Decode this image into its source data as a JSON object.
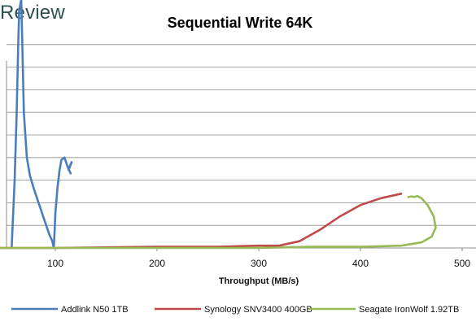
{
  "brand": {
    "text": "Review"
  },
  "chart_data": {
    "type": "line",
    "title": "Sequential Write 64K",
    "xlabel": "Throughput (MB/s)",
    "ylabel": "",
    "xlim": [
      50,
      500
    ],
    "x_ticks": [
      "100",
      "200",
      "300",
      "400",
      "500"
    ],
    "grid": true,
    "legend_position": "bottom",
    "series": [
      {
        "name": "Addlink N50 1TB",
        "color": "#4a7ebb",
        "points": [
          [
            57,
            0
          ],
          [
            60,
            3
          ],
          [
            62,
            6
          ],
          [
            63.5,
            9
          ],
          [
            64.5,
            10.5
          ],
          [
            66.5,
            11
          ],
          [
            67,
            10
          ],
          [
            69,
            6
          ],
          [
            72,
            4
          ],
          [
            75,
            3.2
          ],
          [
            79,
            2.6
          ],
          [
            82,
            2.2
          ],
          [
            85,
            1.8
          ],
          [
            88,
            1.4
          ],
          [
            91,
            1.0
          ],
          [
            94,
            0.6
          ],
          [
            97,
            0.3
          ],
          [
            98.5,
            0
          ],
          [
            99,
            0.5
          ],
          [
            100,
            1.5
          ],
          [
            102,
            2.6
          ],
          [
            104,
            3.4
          ],
          [
            106,
            3.9
          ],
          [
            109,
            4.0
          ],
          [
            112,
            3.6
          ],
          [
            115,
            3.3
          ],
          [
            113,
            3.5
          ],
          [
            115,
            3.7
          ],
          [
            113,
            3.45
          ],
          [
            116,
            3.8
          ],
          [
            114,
            3.55
          ]
        ]
      },
      {
        "name": "Synology SNV3400 400GB",
        "color": "#be4b48",
        "points": [
          [
            45,
            0
          ],
          [
            100,
            0
          ],
          [
            200,
            0.05
          ],
          [
            260,
            0.05
          ],
          [
            300,
            0.1
          ],
          [
            320,
            0.1
          ],
          [
            340,
            0.3
          ],
          [
            360,
            0.8
          ],
          [
            380,
            1.4
          ],
          [
            400,
            1.9
          ],
          [
            420,
            2.2
          ],
          [
            440,
            2.4
          ]
        ]
      },
      {
        "name": "Seagate IronWolf 1.92TB",
        "color": "#98b954",
        "points": [
          [
            43,
            0
          ],
          [
            100,
            0
          ],
          [
            200,
            0
          ],
          [
            300,
            0
          ],
          [
            350,
            0.05
          ],
          [
            400,
            0.05
          ],
          [
            440,
            0.1
          ],
          [
            460,
            0.25
          ],
          [
            470,
            0.5
          ],
          [
            474,
            0.9
          ],
          [
            472,
            1.4
          ],
          [
            466,
            1.9
          ],
          [
            460,
            2.2
          ],
          [
            456,
            2.3
          ],
          [
            453,
            2.26
          ],
          [
            450,
            2.28
          ],
          [
            447,
            2.25
          ]
        ]
      }
    ]
  }
}
